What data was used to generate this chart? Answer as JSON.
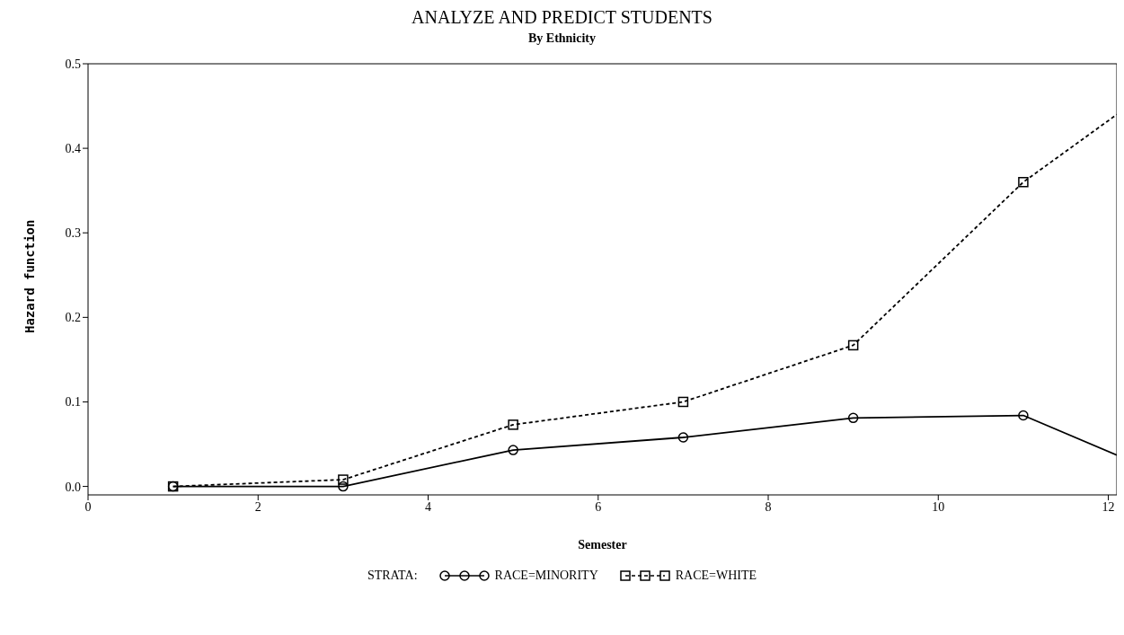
{
  "chart_data": {
    "type": "line",
    "title": "ANALYZE AND PREDICT STUDENTS",
    "subtitle": "By Ethnicity",
    "xlabel": "Semester",
    "ylabel": "Hazard function",
    "legend_title": "STRATA:",
    "legend": "bottom",
    "xlim": [
      0,
      12.1
    ],
    "xticks": [
      0,
      2,
      4,
      6,
      8,
      10,
      12
    ],
    "ylim": [
      -0.01,
      0.5
    ],
    "yticks": [
      {
        "value": 0,
        "label": "0.0"
      },
      0.1,
      0.2,
      0.3,
      0.4,
      0.5
    ],
    "series": [
      {
        "name": "RACE=MINORITY",
        "color": "#000000",
        "marker": "circle",
        "line_style": "solid",
        "x": [
          1,
          3,
          5,
          7,
          9,
          11,
          12.1
        ],
        "values": [
          0,
          0,
          0.043,
          0.058,
          0.081,
          0.084,
          0.037
        ]
      },
      {
        "name": "RACE=WHITE",
        "color": "#000000",
        "marker": "square",
        "line_style": "dashed",
        "x": [
          1,
          3,
          5,
          7,
          9,
          11,
          12.1
        ],
        "values": [
          0,
          0.008,
          0.073,
          0.1,
          0.167,
          0.36,
          0.44
        ]
      }
    ]
  }
}
